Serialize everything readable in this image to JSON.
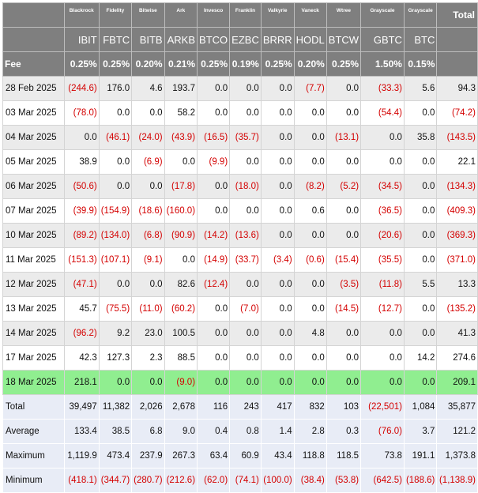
{
  "issuers": [
    "Blackrock",
    "Fidelity",
    "Bitwise",
    "Ark",
    "Invesco",
    "Franklin",
    "Valkyrie",
    "Vaneck",
    "Wtree",
    "Grayscale",
    "Grayscale"
  ],
  "total_label": "Total",
  "tickers": [
    "IBIT",
    "FBTC",
    "BITB",
    "ARKB",
    "BTCO",
    "EZBC",
    "BRRR",
    "HODL",
    "BTCW",
    "GBTC",
    "BTC"
  ],
  "fee_label": "Fee",
  "fees": [
    "0.25%",
    "0.25%",
    "0.20%",
    "0.21%",
    "0.25%",
    "0.19%",
    "0.25%",
    "0.20%",
    "0.25%",
    "1.50%",
    "0.15%"
  ],
  "rows": [
    {
      "date": "28 Feb 2025",
      "values": [
        "(244.6)",
        "176.0",
        "4.6",
        "193.7",
        "0.0",
        "0.0",
        "0.0",
        "(7.7)",
        "0.0",
        "(33.3)",
        "5.6"
      ],
      "total": "94.3"
    },
    {
      "date": "03 Mar 2025",
      "values": [
        "(78.0)",
        "0.0",
        "0.0",
        "58.2",
        "0.0",
        "0.0",
        "0.0",
        "0.0",
        "0.0",
        "(54.4)",
        "0.0"
      ],
      "total": "(74.2)"
    },
    {
      "date": "04 Mar 2025",
      "values": [
        "0.0",
        "(46.1)",
        "(24.0)",
        "(43.9)",
        "(16.5)",
        "(35.7)",
        "0.0",
        "0.0",
        "(13.1)",
        "0.0",
        "35.8"
      ],
      "total": "(143.5)"
    },
    {
      "date": "05 Mar 2025",
      "values": [
        "38.9",
        "0.0",
        "(6.9)",
        "0.0",
        "(9.9)",
        "0.0",
        "0.0",
        "0.0",
        "0.0",
        "0.0",
        "0.0"
      ],
      "total": "22.1"
    },
    {
      "date": "06 Mar 2025",
      "values": [
        "(50.6)",
        "0.0",
        "0.0",
        "(17.8)",
        "0.0",
        "(18.0)",
        "0.0",
        "(8.2)",
        "(5.2)",
        "(34.5)",
        "0.0"
      ],
      "total": "(134.3)"
    },
    {
      "date": "07 Mar 2025",
      "values": [
        "(39.9)",
        "(154.9)",
        "(18.6)",
        "(160.0)",
        "0.0",
        "0.0",
        "0.0",
        "0.6",
        "0.0",
        "(36.5)",
        "0.0"
      ],
      "total": "(409.3)"
    },
    {
      "date": "10 Mar 2025",
      "values": [
        "(89.2)",
        "(134.0)",
        "(6.8)",
        "(90.9)",
        "(14.2)",
        "(13.6)",
        "0.0",
        "0.0",
        "0.0",
        "(20.6)",
        "0.0"
      ],
      "total": "(369.3)"
    },
    {
      "date": "11 Mar 2025",
      "values": [
        "(151.3)",
        "(107.1)",
        "(9.1)",
        "0.0",
        "(14.9)",
        "(33.7)",
        "(3.4)",
        "(0.6)",
        "(15.4)",
        "(35.5)",
        "0.0"
      ],
      "total": "(371.0)"
    },
    {
      "date": "12 Mar 2025",
      "values": [
        "(47.1)",
        "0.0",
        "0.0",
        "82.6",
        "(12.4)",
        "0.0",
        "0.0",
        "0.0",
        "(3.5)",
        "(11.8)",
        "5.5"
      ],
      "total": "13.3"
    },
    {
      "date": "13 Mar 2025",
      "values": [
        "45.7",
        "(75.5)",
        "(11.0)",
        "(60.2)",
        "0.0",
        "(7.0)",
        "0.0",
        "0.0",
        "(14.5)",
        "(12.7)",
        "0.0"
      ],
      "total": "(135.2)"
    },
    {
      "date": "14 Mar 2025",
      "values": [
        "(96.2)",
        "9.2",
        "23.0",
        "100.5",
        "0.0",
        "0.0",
        "0.0",
        "4.8",
        "0.0",
        "0.0",
        "0.0"
      ],
      "total": "41.3"
    },
    {
      "date": "17 Mar 2025",
      "values": [
        "42.3",
        "127.3",
        "2.3",
        "88.5",
        "0.0",
        "0.0",
        "0.0",
        "0.0",
        "0.0",
        "0.0",
        "14.2"
      ],
      "total": "274.6"
    },
    {
      "date": "18 Mar 2025",
      "values": [
        "218.1",
        "0.0",
        "0.0",
        "(9.0)",
        "0.0",
        "0.0",
        "0.0",
        "0.0",
        "0.0",
        "0.0",
        "0.0"
      ],
      "total": "209.1",
      "highlight": true
    }
  ],
  "summary": [
    {
      "label": "Total",
      "values": [
        "39,497",
        "11,382",
        "2,026",
        "2,678",
        "116",
        "243",
        "417",
        "832",
        "103",
        "(22,501)",
        "1,084"
      ],
      "total": "35,877"
    },
    {
      "label": "Average",
      "values": [
        "133.4",
        "38.5",
        "6.8",
        "9.0",
        "0.4",
        "0.8",
        "1.4",
        "2.8",
        "0.3",
        "(76.0)",
        "3.7"
      ],
      "total": "121.2"
    },
    {
      "label": "Maximum",
      "values": [
        "1,119.9",
        "473.4",
        "237.9",
        "267.3",
        "63.4",
        "60.9",
        "43.4",
        "118.8",
        "118.5",
        "73.8",
        "191.1"
      ],
      "total": "1,373.8"
    },
    {
      "label": "Minimum",
      "values": [
        "(418.1)",
        "(344.7)",
        "(280.7)",
        "(212.6)",
        "(62.0)",
        "(74.1)",
        "(100.0)",
        "(38.4)",
        "(53.8)",
        "(642.5)",
        "(188.6)"
      ],
      "total": "(1,138.9)"
    }
  ]
}
